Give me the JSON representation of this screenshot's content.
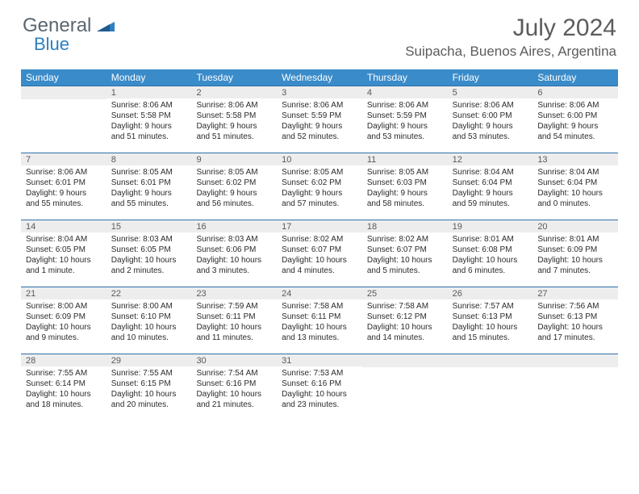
{
  "logo": {
    "text1": "General",
    "text2": "Blue"
  },
  "title": "July 2024",
  "location": "Suipacha, Buenos Aires, Argentina",
  "colors": {
    "header_bg": "#3a8bc9",
    "header_text": "#ffffff",
    "border": "#2d6fa8",
    "daynum_bg": "#ededed",
    "body_text": "#2b2b2b",
    "title_text": "#5c5c5c",
    "logo_gray": "#5a6670",
    "logo_blue": "#2d7fc1"
  },
  "weekdays": [
    "Sunday",
    "Monday",
    "Tuesday",
    "Wednesday",
    "Thursday",
    "Friday",
    "Saturday"
  ],
  "weeks": [
    [
      {
        "n": "",
        "sr": "",
        "ss": "",
        "dl": ""
      },
      {
        "n": "1",
        "sr": "Sunrise: 8:06 AM",
        "ss": "Sunset: 5:58 PM",
        "dl": "Daylight: 9 hours and 51 minutes."
      },
      {
        "n": "2",
        "sr": "Sunrise: 8:06 AM",
        "ss": "Sunset: 5:58 PM",
        "dl": "Daylight: 9 hours and 51 minutes."
      },
      {
        "n": "3",
        "sr": "Sunrise: 8:06 AM",
        "ss": "Sunset: 5:59 PM",
        "dl": "Daylight: 9 hours and 52 minutes."
      },
      {
        "n": "4",
        "sr": "Sunrise: 8:06 AM",
        "ss": "Sunset: 5:59 PM",
        "dl": "Daylight: 9 hours and 53 minutes."
      },
      {
        "n": "5",
        "sr": "Sunrise: 8:06 AM",
        "ss": "Sunset: 6:00 PM",
        "dl": "Daylight: 9 hours and 53 minutes."
      },
      {
        "n": "6",
        "sr": "Sunrise: 8:06 AM",
        "ss": "Sunset: 6:00 PM",
        "dl": "Daylight: 9 hours and 54 minutes."
      }
    ],
    [
      {
        "n": "7",
        "sr": "Sunrise: 8:06 AM",
        "ss": "Sunset: 6:01 PM",
        "dl": "Daylight: 9 hours and 55 minutes."
      },
      {
        "n": "8",
        "sr": "Sunrise: 8:05 AM",
        "ss": "Sunset: 6:01 PM",
        "dl": "Daylight: 9 hours and 55 minutes."
      },
      {
        "n": "9",
        "sr": "Sunrise: 8:05 AM",
        "ss": "Sunset: 6:02 PM",
        "dl": "Daylight: 9 hours and 56 minutes."
      },
      {
        "n": "10",
        "sr": "Sunrise: 8:05 AM",
        "ss": "Sunset: 6:02 PM",
        "dl": "Daylight: 9 hours and 57 minutes."
      },
      {
        "n": "11",
        "sr": "Sunrise: 8:05 AM",
        "ss": "Sunset: 6:03 PM",
        "dl": "Daylight: 9 hours and 58 minutes."
      },
      {
        "n": "12",
        "sr": "Sunrise: 8:04 AM",
        "ss": "Sunset: 6:04 PM",
        "dl": "Daylight: 9 hours and 59 minutes."
      },
      {
        "n": "13",
        "sr": "Sunrise: 8:04 AM",
        "ss": "Sunset: 6:04 PM",
        "dl": "Daylight: 10 hours and 0 minutes."
      }
    ],
    [
      {
        "n": "14",
        "sr": "Sunrise: 8:04 AM",
        "ss": "Sunset: 6:05 PM",
        "dl": "Daylight: 10 hours and 1 minute."
      },
      {
        "n": "15",
        "sr": "Sunrise: 8:03 AM",
        "ss": "Sunset: 6:05 PM",
        "dl": "Daylight: 10 hours and 2 minutes."
      },
      {
        "n": "16",
        "sr": "Sunrise: 8:03 AM",
        "ss": "Sunset: 6:06 PM",
        "dl": "Daylight: 10 hours and 3 minutes."
      },
      {
        "n": "17",
        "sr": "Sunrise: 8:02 AM",
        "ss": "Sunset: 6:07 PM",
        "dl": "Daylight: 10 hours and 4 minutes."
      },
      {
        "n": "18",
        "sr": "Sunrise: 8:02 AM",
        "ss": "Sunset: 6:07 PM",
        "dl": "Daylight: 10 hours and 5 minutes."
      },
      {
        "n": "19",
        "sr": "Sunrise: 8:01 AM",
        "ss": "Sunset: 6:08 PM",
        "dl": "Daylight: 10 hours and 6 minutes."
      },
      {
        "n": "20",
        "sr": "Sunrise: 8:01 AM",
        "ss": "Sunset: 6:09 PM",
        "dl": "Daylight: 10 hours and 7 minutes."
      }
    ],
    [
      {
        "n": "21",
        "sr": "Sunrise: 8:00 AM",
        "ss": "Sunset: 6:09 PM",
        "dl": "Daylight: 10 hours and 9 minutes."
      },
      {
        "n": "22",
        "sr": "Sunrise: 8:00 AM",
        "ss": "Sunset: 6:10 PM",
        "dl": "Daylight: 10 hours and 10 minutes."
      },
      {
        "n": "23",
        "sr": "Sunrise: 7:59 AM",
        "ss": "Sunset: 6:11 PM",
        "dl": "Daylight: 10 hours and 11 minutes."
      },
      {
        "n": "24",
        "sr": "Sunrise: 7:58 AM",
        "ss": "Sunset: 6:11 PM",
        "dl": "Daylight: 10 hours and 13 minutes."
      },
      {
        "n": "25",
        "sr": "Sunrise: 7:58 AM",
        "ss": "Sunset: 6:12 PM",
        "dl": "Daylight: 10 hours and 14 minutes."
      },
      {
        "n": "26",
        "sr": "Sunrise: 7:57 AM",
        "ss": "Sunset: 6:13 PM",
        "dl": "Daylight: 10 hours and 15 minutes."
      },
      {
        "n": "27",
        "sr": "Sunrise: 7:56 AM",
        "ss": "Sunset: 6:13 PM",
        "dl": "Daylight: 10 hours and 17 minutes."
      }
    ],
    [
      {
        "n": "28",
        "sr": "Sunrise: 7:55 AM",
        "ss": "Sunset: 6:14 PM",
        "dl": "Daylight: 10 hours and 18 minutes."
      },
      {
        "n": "29",
        "sr": "Sunrise: 7:55 AM",
        "ss": "Sunset: 6:15 PM",
        "dl": "Daylight: 10 hours and 20 minutes."
      },
      {
        "n": "30",
        "sr": "Sunrise: 7:54 AM",
        "ss": "Sunset: 6:16 PM",
        "dl": "Daylight: 10 hours and 21 minutes."
      },
      {
        "n": "31",
        "sr": "Sunrise: 7:53 AM",
        "ss": "Sunset: 6:16 PM",
        "dl": "Daylight: 10 hours and 23 minutes."
      },
      {
        "n": "",
        "sr": "",
        "ss": "",
        "dl": ""
      },
      {
        "n": "",
        "sr": "",
        "ss": "",
        "dl": ""
      },
      {
        "n": "",
        "sr": "",
        "ss": "",
        "dl": ""
      }
    ]
  ]
}
